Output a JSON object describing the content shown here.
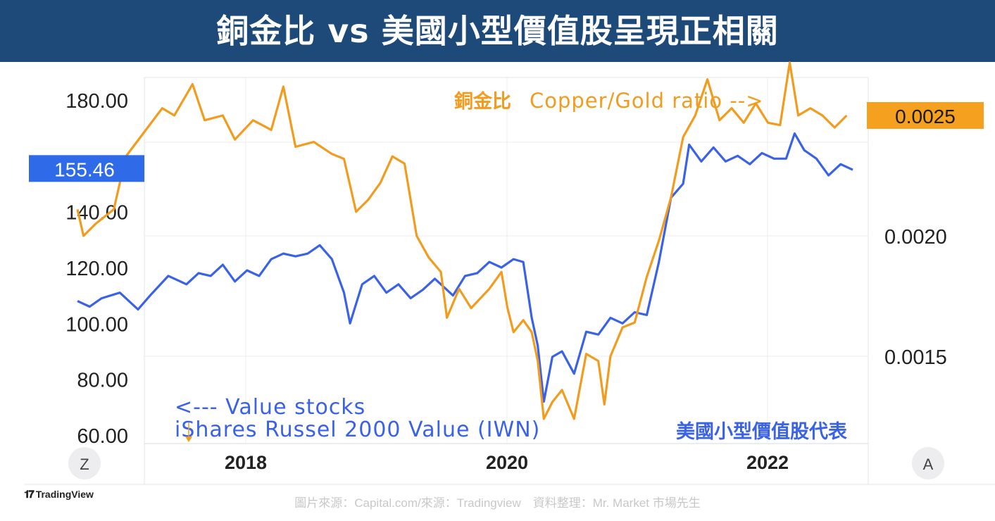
{
  "header": {
    "title": "銅金比 vs 美國小型價值股呈現正相關"
  },
  "chart_data": {
    "type": "line",
    "left_axis": {
      "ticks": [
        "180.00",
        "140.00",
        "120.00",
        "100.00",
        "80.00",
        "60.00"
      ],
      "ylim": [
        60,
        180
      ]
    },
    "right_axis": {
      "ticks": [
        "0.0020",
        "0.0015"
      ],
      "ylim": [
        0.00118,
        0.00288
      ]
    },
    "x_ticks": [
      "2018",
      "2020",
      "2022"
    ],
    "x_range": [
      2017.0,
      2023.9
    ],
    "left_badge": "155.46",
    "right_badge": "0.0025",
    "scale_buttons": {
      "left": "Z",
      "right": "A"
    },
    "annotations": {
      "copper_prefix": "銅金比",
      "copper_label": "Copper/Gold ratio -->",
      "value_line1": "<--- Value stocks",
      "value_line2": "iShares Russel 2000 Value (IWN)",
      "value_zh": "美國小型價值股代表"
    },
    "grid": true,
    "series": [
      {
        "color": "#3a62e6",
        "axis": "left",
        "points": [
          [
            2017.0,
            108
          ],
          [
            2017.1,
            106
          ],
          [
            2017.2,
            109
          ],
          [
            2017.35,
            111
          ],
          [
            2017.5,
            105
          ],
          [
            2017.6,
            110
          ],
          [
            2017.75,
            117
          ],
          [
            2017.9,
            114
          ],
          [
            2018.0,
            118
          ],
          [
            2018.1,
            117
          ],
          [
            2018.2,
            121
          ],
          [
            2018.3,
            115
          ],
          [
            2018.4,
            119
          ],
          [
            2018.5,
            117
          ],
          [
            2018.6,
            123
          ],
          [
            2018.7,
            125
          ],
          [
            2018.8,
            124
          ],
          [
            2018.9,
            125
          ],
          [
            2019.0,
            128
          ],
          [
            2019.1,
            123
          ],
          [
            2019.2,
            111
          ],
          [
            2019.25,
            100
          ],
          [
            2019.35,
            114
          ],
          [
            2019.45,
            117
          ],
          [
            2019.55,
            111
          ],
          [
            2019.65,
            114
          ],
          [
            2019.75,
            109
          ],
          [
            2019.85,
            112
          ],
          [
            2019.95,
            116
          ],
          [
            2020.0,
            114
          ],
          [
            2020.1,
            110
          ],
          [
            2020.2,
            117
          ],
          [
            2020.3,
            118
          ],
          [
            2020.4,
            122
          ],
          [
            2020.5,
            120
          ],
          [
            2020.6,
            123
          ],
          [
            2020.68,
            122
          ],
          [
            2020.75,
            102
          ],
          [
            2020.8,
            92
          ],
          [
            2020.85,
            72
          ],
          [
            2020.92,
            88
          ],
          [
            2021.0,
            90
          ],
          [
            2021.1,
            82
          ],
          [
            2021.2,
            97
          ],
          [
            2021.3,
            96
          ],
          [
            2021.4,
            102
          ],
          [
            2021.5,
            100
          ],
          [
            2021.6,
            104
          ],
          [
            2021.7,
            103
          ],
          [
            2021.8,
            122
          ],
          [
            2021.9,
            145
          ],
          [
            2022.0,
            150
          ],
          [
            2022.05,
            164
          ],
          [
            2022.15,
            158
          ],
          [
            2022.25,
            163
          ],
          [
            2022.35,
            158
          ],
          [
            2022.45,
            160
          ],
          [
            2022.55,
            157
          ],
          [
            2022.65,
            161
          ],
          [
            2022.75,
            159
          ],
          [
            2022.85,
            159
          ],
          [
            2022.92,
            168
          ],
          [
            2023.0,
            162
          ],
          [
            2023.1,
            159
          ],
          [
            2023.2,
            153
          ],
          [
            2023.3,
            157
          ],
          [
            2023.4,
            155
          ]
        ]
      },
      {
        "color": "#f29c1f",
        "axis": "right",
        "points": [
          [
            2017.0,
            0.00211
          ],
          [
            2017.05,
            0.002
          ],
          [
            2017.15,
            0.00205
          ],
          [
            2017.3,
            0.00211
          ],
          [
            2017.4,
            0.00233
          ],
          [
            2017.55,
            0.00243
          ],
          [
            2017.7,
            0.00253
          ],
          [
            2017.8,
            0.0025
          ],
          [
            2017.95,
            0.00263
          ],
          [
            2018.05,
            0.00248
          ],
          [
            2018.2,
            0.0025
          ],
          [
            2018.3,
            0.0024
          ],
          [
            2018.45,
            0.00248
          ],
          [
            2018.6,
            0.00244
          ],
          [
            2018.7,
            0.00262
          ],
          [
            2018.8,
            0.00237
          ],
          [
            2018.95,
            0.00239
          ],
          [
            2019.1,
            0.00234
          ],
          [
            2019.2,
            0.00232
          ],
          [
            2019.3,
            0.0021
          ],
          [
            2019.4,
            0.00215
          ],
          [
            2019.5,
            0.00222
          ],
          [
            2019.6,
            0.00233
          ],
          [
            2019.7,
            0.0023
          ],
          [
            2019.8,
            0.002
          ],
          [
            2019.9,
            0.00191
          ],
          [
            2020.0,
            0.00185
          ],
          [
            2020.05,
            0.00166
          ],
          [
            2020.15,
            0.00178
          ],
          [
            2020.25,
            0.0017
          ],
          [
            2020.4,
            0.00178
          ],
          [
            2020.5,
            0.00185
          ],
          [
            2020.55,
            0.0017
          ],
          [
            2020.6,
            0.0016
          ],
          [
            2020.68,
            0.00165
          ],
          [
            2020.75,
            0.0016
          ],
          [
            2020.8,
            0.00148
          ],
          [
            2020.85,
            0.00124
          ],
          [
            2020.92,
            0.00131
          ],
          [
            2021.0,
            0.00136
          ],
          [
            2021.1,
            0.00124
          ],
          [
            2021.2,
            0.00151
          ],
          [
            2021.3,
            0.00148
          ],
          [
            2021.35,
            0.0013
          ],
          [
            2021.4,
            0.0015
          ],
          [
            2021.5,
            0.00162
          ],
          [
            2021.6,
            0.00164
          ],
          [
            2021.7,
            0.00183
          ],
          [
            2021.8,
            0.00198
          ],
          [
            2021.9,
            0.00216
          ],
          [
            2022.0,
            0.00241
          ],
          [
            2022.1,
            0.0025
          ],
          [
            2022.2,
            0.00265
          ],
          [
            2022.3,
            0.00248
          ],
          [
            2022.4,
            0.00253
          ],
          [
            2022.5,
            0.00247
          ],
          [
            2022.6,
            0.00255
          ],
          [
            2022.7,
            0.00247
          ],
          [
            2022.8,
            0.00246
          ],
          [
            2022.88,
            0.00272
          ],
          [
            2022.95,
            0.0025
          ],
          [
            2023.05,
            0.00253
          ],
          [
            2023.15,
            0.0025
          ],
          [
            2023.25,
            0.00245
          ],
          [
            2023.35,
            0.0025
          ]
        ]
      }
    ]
  },
  "footer": {
    "source": "圖片來源：Capital.com/來源：Tradingview　資料整理：Mr. Market 市場先生",
    "logo": "TradingView"
  }
}
